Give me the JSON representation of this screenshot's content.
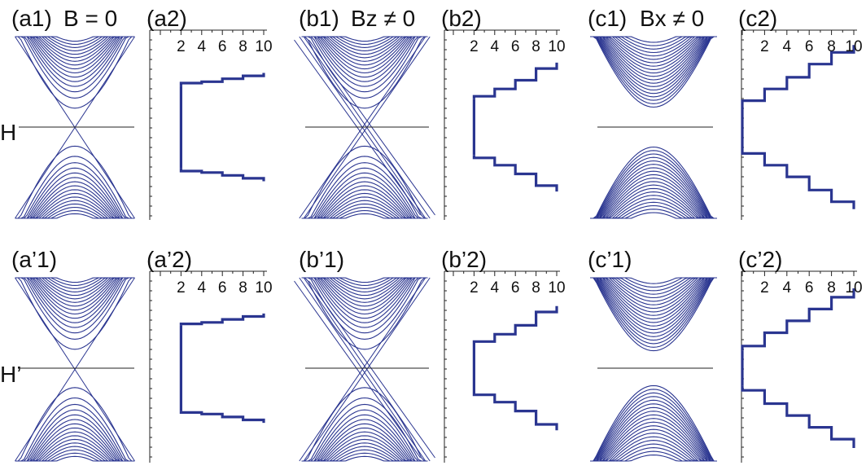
{
  "colors": {
    "band": "#2a3590",
    "step": "#2a3590",
    "axis": "#222222",
    "fermi": "#222222"
  },
  "row_labels": [
    "H",
    "H’"
  ],
  "chart_data": [
    {
      "id": "a1",
      "type": "line",
      "label": "(a1)",
      "title": "B = 0",
      "band_gap": 0,
      "dirac_cone": true,
      "fermi_line": true
    },
    {
      "id": "a2",
      "type": "line",
      "label": "(a2)",
      "x_ticks": [
        2,
        4,
        6,
        8,
        10
      ],
      "xlim": [
        0,
        10
      ],
      "series": [
        {
          "x": [
            2,
            2,
            4,
            4,
            6,
            6,
            8,
            8,
            10,
            10
          ],
          "y": [
            0.28,
            0.3,
            0.3,
            0.31,
            0.31,
            0.33,
            0.33,
            0.35,
            0.35,
            0.37
          ]
        },
        {
          "x": [
            2,
            2,
            4,
            4,
            6,
            6,
            8,
            8,
            10,
            10
          ],
          "y": [
            -0.28,
            -0.3,
            -0.3,
            -0.31,
            -0.31,
            -0.33,
            -0.33,
            -0.35,
            -0.35,
            -0.37
          ]
        }
      ]
    },
    {
      "id": "b1",
      "type": "line",
      "label": "(b1)",
      "title": "Bz ≠ 0",
      "band_gap": 0,
      "dirac_cone": true,
      "split_cone": true,
      "fermi_line": true
    },
    {
      "id": "b2",
      "type": "line",
      "label": "(b2)",
      "x_ticks": [
        2,
        4,
        6,
        8,
        10
      ],
      "xlim": [
        0,
        10
      ],
      "series": [
        {
          "x": [
            2,
            2,
            4,
            4,
            6,
            6,
            8,
            8,
            10,
            10
          ],
          "y": [
            0.19,
            0.21,
            0.21,
            0.26,
            0.26,
            0.32,
            0.32,
            0.4,
            0.4,
            0.44
          ]
        },
        {
          "x": [
            2,
            2,
            4,
            4,
            6,
            6,
            8,
            8,
            10,
            10
          ],
          "y": [
            -0.19,
            -0.21,
            -0.21,
            -0.26,
            -0.26,
            -0.32,
            -0.32,
            -0.4,
            -0.4,
            -0.44
          ]
        }
      ]
    },
    {
      "id": "c1",
      "type": "line",
      "label": "(c1)",
      "title": "Bx ≠ 0",
      "band_gap": 0.22,
      "dirac_cone": false,
      "fermi_line": true
    },
    {
      "id": "c2",
      "type": "line",
      "label": "(c2)",
      "x_ticks": [
        2,
        4,
        6,
        8,
        10
      ],
      "xlim": [
        0,
        10
      ],
      "series": [
        {
          "x": [
            0,
            0,
            2,
            2,
            4,
            4,
            6,
            6,
            8,
            8,
            10,
            10
          ],
          "y": [
            0.15,
            0.18,
            0.18,
            0.26,
            0.26,
            0.34,
            0.34,
            0.43,
            0.43,
            0.51,
            0.51,
            0.56
          ]
        },
        {
          "x": [
            0,
            0,
            2,
            2,
            4,
            4,
            6,
            6,
            8,
            8,
            10,
            10
          ],
          "y": [
            -0.15,
            -0.18,
            -0.18,
            -0.26,
            -0.26,
            -0.34,
            -0.34,
            -0.43,
            -0.43,
            -0.51,
            -0.51,
            -0.56
          ]
        }
      ]
    },
    {
      "id": "a1p",
      "type": "line",
      "label": "(a’1)",
      "band_gap": 0,
      "dirac_cone": true,
      "fermi_line": true
    },
    {
      "id": "a2p",
      "type": "line",
      "label": "(a’2)",
      "x_ticks": [
        2,
        4,
        6,
        8,
        10
      ],
      "xlim": [
        0,
        10
      ],
      "series": [
        {
          "x": [
            2,
            2,
            4,
            4,
            6,
            6,
            8,
            8,
            10,
            10
          ],
          "y": [
            0.29,
            0.3,
            0.3,
            0.31,
            0.31,
            0.33,
            0.33,
            0.35,
            0.35,
            0.37
          ]
        },
        {
          "x": [
            2,
            2,
            4,
            4,
            6,
            6,
            8,
            8,
            10,
            10
          ],
          "y": [
            -0.29,
            -0.3,
            -0.3,
            -0.31,
            -0.31,
            -0.33,
            -0.33,
            -0.35,
            -0.35,
            -0.37
          ]
        }
      ]
    },
    {
      "id": "b1p",
      "type": "line",
      "label": "(b’1)",
      "band_gap": 0,
      "dirac_cone": true,
      "split_cone": true,
      "fermi_line": true
    },
    {
      "id": "b2p",
      "type": "line",
      "label": "(b’2)",
      "x_ticks": [
        2,
        4,
        6,
        8,
        10
      ],
      "xlim": [
        0,
        10
      ],
      "series": [
        {
          "x": [
            2,
            2,
            4,
            4,
            6,
            6,
            8,
            8,
            10,
            10
          ],
          "y": [
            0.16,
            0.18,
            0.18,
            0.23,
            0.23,
            0.29,
            0.29,
            0.38,
            0.38,
            0.42
          ]
        },
        {
          "x": [
            2,
            2,
            4,
            4,
            6,
            6,
            8,
            8,
            10,
            10
          ],
          "y": [
            -0.16,
            -0.18,
            -0.18,
            -0.23,
            -0.23,
            -0.29,
            -0.29,
            -0.38,
            -0.38,
            -0.42
          ]
        }
      ]
    },
    {
      "id": "c1p",
      "type": "line",
      "label": "(c’1)",
      "band_gap": 0.19,
      "dirac_cone": false,
      "fermi_line": true
    },
    {
      "id": "c2p",
      "type": "line",
      "label": "(c’2)",
      "x_ticks": [
        2,
        4,
        6,
        8,
        10
      ],
      "xlim": [
        0,
        10
      ],
      "series": [
        {
          "x": [
            0,
            0,
            2,
            2,
            4,
            4,
            6,
            6,
            8,
            8,
            10,
            10
          ],
          "y": [
            0.12,
            0.15,
            0.15,
            0.24,
            0.24,
            0.32,
            0.32,
            0.4,
            0.4,
            0.48,
            0.48,
            0.54
          ]
        },
        {
          "x": [
            0,
            0,
            2,
            2,
            4,
            4,
            6,
            6,
            8,
            8,
            10,
            10
          ],
          "y": [
            -0.12,
            -0.15,
            -0.15,
            -0.24,
            -0.24,
            -0.32,
            -0.32,
            -0.4,
            -0.4,
            -0.48,
            -0.48,
            -0.54
          ]
        }
      ]
    }
  ]
}
